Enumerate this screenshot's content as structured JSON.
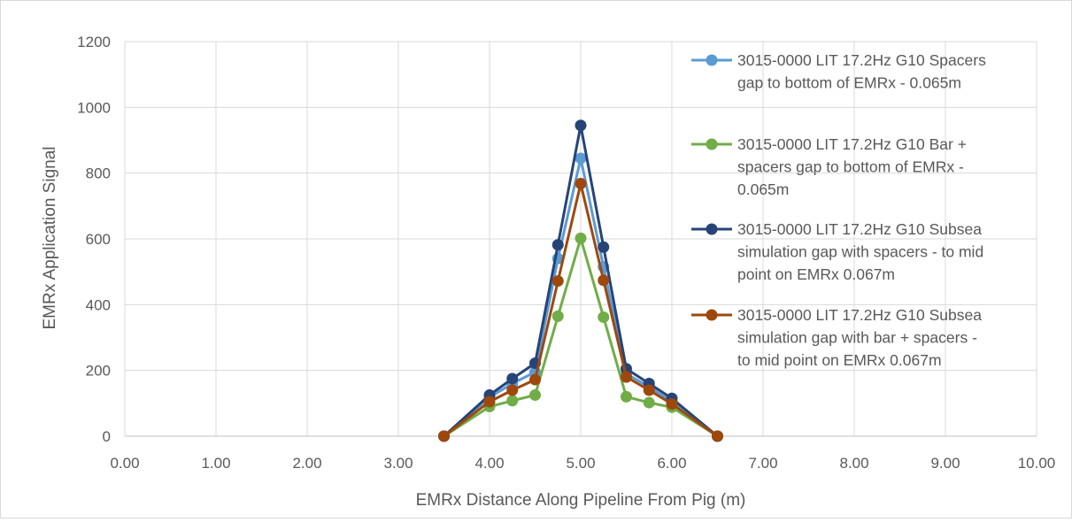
{
  "chart_data": {
    "type": "line",
    "title": "",
    "xlabel": "EMRx Distance Along Pipeline From Pig (m)",
    "ylabel": "EMRx Application Signal",
    "xlim": [
      0,
      10
    ],
    "ylim": [
      0,
      1200
    ],
    "x_ticks": [
      "0.00",
      "1.00",
      "2.00",
      "3.00",
      "4.00",
      "5.00",
      "6.00",
      "7.00",
      "8.00",
      "9.00",
      "10.00"
    ],
    "y_ticks": [
      "0",
      "200",
      "400",
      "600",
      "800",
      "1000",
      "1200"
    ],
    "grid": true,
    "legend_position": "right",
    "x": [
      3.5,
      4.0,
      4.25,
      4.5,
      4.75,
      5.0,
      5.25,
      5.5,
      5.75,
      6.0,
      6.5
    ],
    "series": [
      {
        "name": "3015-0000 LIT 17.2Hz G10 Spacers gap to bottom of EMRx - 0.065m",
        "legend_lines": [
          "3015-0000 LIT 17.2Hz G10 Spacers",
          "gap to bottom of EMRx - 0.065m"
        ],
        "color": "#5b9bd5",
        "values": [
          0,
          118,
          160,
          195,
          540,
          845,
          515,
          190,
          150,
          105,
          0
        ]
      },
      {
        "name": "3015-0000 LIT 17.2Hz G10 Bar + spacers gap to bottom of EMRx - 0.065m",
        "legend_lines": [
          "3015-0000 LIT 17.2Hz G10 Bar +",
          "spacers gap to bottom of EMRx -",
          "0.065m"
        ],
        "color": "#70ad47",
        "values": [
          0,
          90,
          108,
          125,
          365,
          602,
          362,
          120,
          102,
          88,
          0
        ]
      },
      {
        "name": "3015-0000 LIT 17.2Hz G10 Subsea simulation gap with spacers - to mid point on EMRx 0.067m",
        "legend_lines": [
          "3015-0000 LIT 17.2Hz G10 Subsea",
          "simulation gap with spacers - to mid",
          "point on EMRx 0.067m"
        ],
        "color": "#264478",
        "values": [
          0,
          125,
          175,
          222,
          582,
          945,
          575,
          205,
          160,
          115,
          0
        ]
      },
      {
        "name": "3015-0000 LIT 17.2Hz G10 Subsea simulation gap with bar + spacers - to mid point on EMRx 0.067m",
        "legend_lines": [
          "3015-0000 LIT 17.2Hz G10 Subsea",
          "simulation gap with bar + spacers -",
          "to mid point on EMRx 0.067m"
        ],
        "color": "#9e480e",
        "values": [
          0,
          105,
          140,
          172,
          472,
          768,
          474,
          180,
          140,
          98,
          0
        ]
      }
    ]
  }
}
